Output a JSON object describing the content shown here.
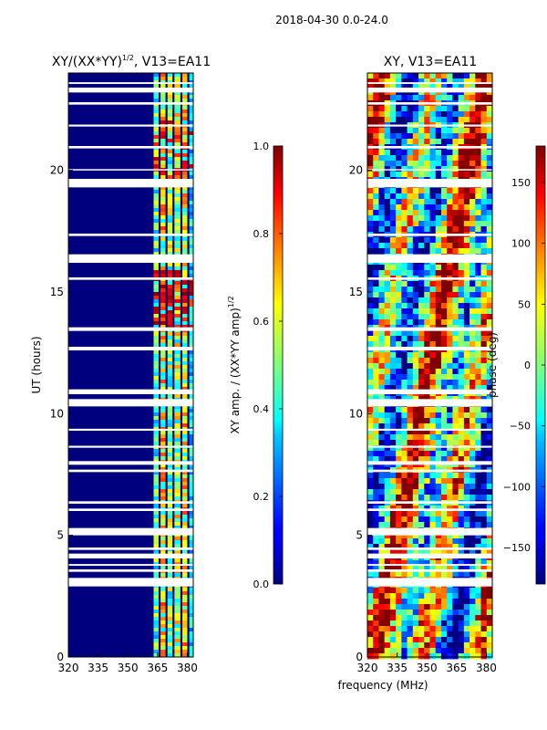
{
  "figure_title": "2018-04-30 0.0-24.0",
  "chart_data": [
    {
      "type": "heatmap",
      "title": "XY/(XX*YY)",
      "title_exponent": "1/2",
      "title_suffix": ", V13=EA11",
      "xlabel": "",
      "ylabel": "UT (hours)",
      "xlim": [
        320,
        383
      ],
      "ylim": [
        0,
        24
      ],
      "xticks": [
        "320",
        "335",
        "350",
        "365",
        "380"
      ],
      "yticks": [
        "0",
        "5",
        "10",
        "15",
        "20"
      ],
      "colormap": "jet",
      "colorbar": {
        "label_prefix": "XY amp. / (XX*YY amp)",
        "label_exponent": "1/2",
        "range": [
          0.0,
          1.0
        ],
        "ticks": [
          "0.0",
          "0.2",
          "0.4",
          "0.6",
          "0.8",
          "1.0"
        ]
      }
    },
    {
      "type": "heatmap",
      "title": "XY, V13=EA11",
      "xlabel": "frequency (MHz)",
      "ylabel": "",
      "xlim": [
        320,
        383
      ],
      "ylim": [
        0,
        24
      ],
      "xticks": [
        "320",
        "335",
        "350",
        "365",
        "380"
      ],
      "yticks": [
        "0",
        "5",
        "10",
        "15",
        "20"
      ],
      "colormap": "jet",
      "colorbar": {
        "label": "phase (deg)",
        "range": [
          -180,
          180
        ],
        "ticks": [
          "−150",
          "−100",
          "−50",
          "0",
          "50",
          "100",
          "150"
        ]
      }
    }
  ],
  "flagged_time_ranges_ut_hours": [
    [
      2.9,
      3.25
    ],
    [
      3.5,
      3.6
    ],
    [
      3.75,
      3.82
    ],
    [
      4.05,
      4.25
    ],
    [
      4.4,
      4.5
    ],
    [
      5.0,
      5.3
    ],
    [
      6.0,
      6.1
    ],
    [
      6.3,
      6.4
    ],
    [
      7.6,
      7.7
    ],
    [
      7.9,
      8.05
    ],
    [
      8.6,
      8.68
    ],
    [
      9.3,
      9.38
    ],
    [
      10.3,
      10.6
    ],
    [
      10.8,
      11.0
    ],
    [
      12.6,
      12.75
    ],
    [
      13.4,
      13.55
    ],
    [
      15.5,
      15.6
    ],
    [
      16.2,
      16.55
    ],
    [
      17.3,
      17.4
    ],
    [
      19.3,
      19.65
    ],
    [
      20.0,
      20.05
    ],
    [
      20.9,
      21.0
    ],
    [
      21.8,
      21.88
    ],
    [
      22.7,
      22.8
    ],
    [
      23.2,
      23.4
    ],
    [
      23.55,
      23.62
    ]
  ]
}
